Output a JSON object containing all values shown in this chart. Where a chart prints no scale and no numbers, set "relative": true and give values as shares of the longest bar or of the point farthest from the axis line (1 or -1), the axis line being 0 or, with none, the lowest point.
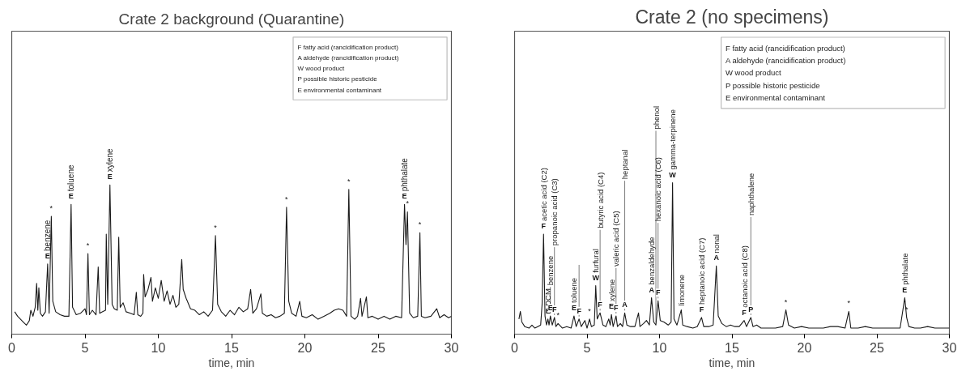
{
  "chart_data": [
    {
      "type": "line",
      "title": "Crate 2 background (Quarantine)",
      "xlabel": "time, min",
      "relative": true,
      "grid": false,
      "xlim": [
        0,
        30
      ],
      "xticks": [
        0,
        5,
        10,
        15,
        20,
        25,
        30
      ],
      "series": [
        {
          "color": "#1a1a1a",
          "x": [
            0.2,
            0.4,
            0.6,
            0.8,
            1.0,
            1.2,
            1.3,
            1.45,
            1.6,
            1.7,
            1.78,
            1.85,
            1.95,
            2.1,
            2.3,
            2.45,
            2.55,
            2.7,
            2.8,
            3.0,
            3.3,
            3.6,
            3.9,
            4.05,
            4.15,
            4.4,
            4.7,
            5.0,
            5.1,
            5.2,
            5.3,
            5.5,
            5.75,
            5.9,
            6.0,
            6.2,
            6.4,
            6.45,
            6.55,
            6.7,
            6.85,
            7.0,
            7.2,
            7.3,
            7.4,
            7.6,
            7.8,
            8.1,
            8.35,
            8.5,
            8.6,
            8.8,
            8.95,
            9.0,
            9.1,
            9.3,
            9.5,
            9.6,
            9.8,
            10.0,
            10.2,
            10.4,
            10.6,
            10.8,
            11.0,
            11.2,
            11.4,
            11.6,
            11.7,
            11.9,
            12.2,
            12.5,
            12.8,
            13.1,
            13.4,
            13.7,
            13.9,
            14.05,
            14.3,
            14.6,
            14.9,
            15.2,
            15.5,
            15.8,
            16.1,
            16.3,
            16.45,
            16.7,
            17.0,
            17.1,
            17.4,
            17.7,
            18.0,
            18.3,
            18.6,
            18.75,
            18.9,
            19.1,
            19.4,
            19.65,
            19.8,
            20.1,
            20.5,
            20.9,
            21.3,
            21.7,
            22.0,
            22.3,
            22.6,
            22.85,
            23.0,
            23.15,
            23.4,
            23.6,
            23.8,
            23.9,
            24.2,
            24.3,
            24.6,
            25.0,
            25.4,
            25.8,
            26.2,
            26.6,
            26.8,
            26.9,
            27.0,
            27.15,
            27.4,
            27.7,
            27.85,
            27.95,
            28.2,
            28.6,
            29.0,
            29.2,
            29.5,
            29.8,
            30.0
          ],
          "values": [
            0.15,
            0.12,
            0.1,
            0.08,
            0.06,
            0.09,
            0.16,
            0.12,
            0.18,
            0.34,
            0.16,
            0.31,
            0.14,
            0.12,
            0.15,
            0.47,
            0.14,
            0.79,
            0.22,
            0.15,
            0.13,
            0.12,
            0.12,
            0.87,
            0.18,
            0.13,
            0.14,
            0.17,
            0.13,
            0.54,
            0.13,
            0.16,
            0.13,
            0.45,
            0.14,
            0.15,
            0.16,
            0.67,
            0.2,
            1.0,
            0.2,
            0.17,
            0.16,
            0.65,
            0.18,
            0.21,
            0.15,
            0.14,
            0.13,
            0.28,
            0.13,
            0.12,
            0.14,
            0.4,
            0.25,
            0.3,
            0.38,
            0.22,
            0.31,
            0.24,
            0.36,
            0.22,
            0.29,
            0.2,
            0.26,
            0.18,
            0.2,
            0.5,
            0.3,
            0.24,
            0.17,
            0.16,
            0.13,
            0.15,
            0.12,
            0.16,
            0.66,
            0.2,
            0.15,
            0.12,
            0.16,
            0.13,
            0.18,
            0.15,
            0.17,
            0.3,
            0.14,
            0.17,
            0.27,
            0.14,
            0.12,
            0.13,
            0.11,
            0.12,
            0.14,
            0.85,
            0.22,
            0.14,
            0.12,
            0.22,
            0.12,
            0.11,
            0.13,
            0.1,
            0.12,
            0.14,
            0.16,
            0.17,
            0.16,
            0.12,
            0.97,
            0.12,
            0.1,
            0.12,
            0.24,
            0.12,
            0.25,
            0.11,
            0.12,
            0.1,
            0.12,
            0.1,
            0.12,
            0.11,
            0.87,
            0.6,
            0.82,
            0.14,
            0.11,
            0.12,
            0.68,
            0.12,
            0.11,
            0.12,
            0.17,
            0.11,
            0.13,
            0.11,
            0.12
          ]
        }
      ],
      "annotations": [
        "F fatty acid (rancidification product)",
        "A aldehyde (rancidification product)",
        "W wood product",
        "P possible historic pesticide",
        "E environmental contaminant",
        {
          "text": "E",
          "x": 2.45,
          "y": 0.47
        },
        {
          "text": "benzene",
          "x": 2.45,
          "y": 0.47
        },
        {
          "text": "*",
          "x": 2.7,
          "y": 0.79
        },
        {
          "text": "E",
          "x": 4.05,
          "y": 0.87
        },
        {
          "text": "toluene",
          "x": 4.05,
          "y": 0.87
        },
        {
          "text": "*",
          "x": 5.2,
          "y": 0.54
        },
        {
          "text": "E",
          "x": 6.7,
          "y": 1.0
        },
        {
          "text": "xylene",
          "x": 6.7,
          "y": 1.0
        },
        {
          "text": "*",
          "x": 13.9,
          "y": 0.66
        },
        {
          "text": "*",
          "x": 18.75,
          "y": 0.85
        },
        {
          "text": "*",
          "x": 23.0,
          "y": 0.97
        },
        {
          "text": "E",
          "x": 26.8,
          "y": 0.87
        },
        {
          "text": "phthalate",
          "x": 26.8,
          "y": 0.87
        },
        {
          "text": "*",
          "x": 27.0,
          "y": 0.82
        },
        {
          "text": "*",
          "x": 27.85,
          "y": 0.68
        }
      ]
    },
    {
      "type": "line",
      "title": "Crate 2 (no specimens)",
      "xlabel": "time, min",
      "relative": true,
      "grid": false,
      "xlim": [
        0,
        30
      ],
      "xticks": [
        0,
        5,
        10,
        15,
        20,
        25,
        30
      ],
      "series": [
        {
          "color": "#1a1a1a",
          "x": [
            0.3,
            0.4,
            0.5,
            0.7,
            1.0,
            1.2,
            1.4,
            1.6,
            1.8,
            1.9,
            2.0,
            2.1,
            2.2,
            2.3,
            2.38,
            2.47,
            2.6,
            2.75,
            2.85,
            3.0,
            3.3,
            3.6,
            3.9,
            4.1,
            4.25,
            4.45,
            4.6,
            4.85,
            5.0,
            5.17,
            5.3,
            5.5,
            5.6,
            5.7,
            5.9,
            6.1,
            6.3,
            6.5,
            6.6,
            6.68,
            6.8,
            7.0,
            7.1,
            7.3,
            7.45,
            7.6,
            7.75,
            8.0,
            8.3,
            8.55,
            8.65,
            8.9,
            9.1,
            9.3,
            9.45,
            9.6,
            9.75,
            9.9,
            10.05,
            10.3,
            10.6,
            10.8,
            10.9,
            11.0,
            11.2,
            11.5,
            11.6,
            11.9,
            12.3,
            12.6,
            12.9,
            13.05,
            13.4,
            13.7,
            13.92,
            14.05,
            14.3,
            14.6,
            14.9,
            15.2,
            15.5,
            15.84,
            16.0,
            16.3,
            16.45,
            16.7,
            17.0,
            17.5,
            18.0,
            18.5,
            18.72,
            18.9,
            19.3,
            19.8,
            20.3,
            20.8,
            21.3,
            21.8,
            22.3,
            22.8,
            23.06,
            23.2,
            23.7,
            24.2,
            24.7,
            25.2,
            25.7,
            26.2,
            26.6,
            26.92,
            27.05,
            27.2,
            27.6,
            28.0,
            28.5,
            29.0,
            29.5,
            30.0
          ],
          "values": [
            0.1,
            0.15,
            0.08,
            0.05,
            0.04,
            0.06,
            0.04,
            0.05,
            0.06,
            0.2,
            0.66,
            0.12,
            0.06,
            0.1,
            0.06,
            0.12,
            0.06,
            0.11,
            0.05,
            0.07,
            0.04,
            0.05,
            0.04,
            0.12,
            0.05,
            0.1,
            0.05,
            0.09,
            0.04,
            0.1,
            0.05,
            0.06,
            0.32,
            0.1,
            0.14,
            0.06,
            0.05,
            0.1,
            0.06,
            0.13,
            0.05,
            0.12,
            0.05,
            0.07,
            0.05,
            0.14,
            0.06,
            0.05,
            0.05,
            0.14,
            0.05,
            0.07,
            0.09,
            0.06,
            0.24,
            0.08,
            0.06,
            0.22,
            0.09,
            0.08,
            0.06,
            0.08,
            1.0,
            0.1,
            0.06,
            0.16,
            0.06,
            0.05,
            0.04,
            0.05,
            0.11,
            0.05,
            0.05,
            0.06,
            0.45,
            0.12,
            0.07,
            0.05,
            0.06,
            0.05,
            0.05,
            0.09,
            0.05,
            0.11,
            0.05,
            0.06,
            0.04,
            0.04,
            0.04,
            0.05,
            0.16,
            0.06,
            0.04,
            0.05,
            0.04,
            0.04,
            0.04,
            0.05,
            0.05,
            0.04,
            0.15,
            0.04,
            0.04,
            0.05,
            0.04,
            0.04,
            0.04,
            0.04,
            0.04,
            0.24,
            0.11,
            0.05,
            0.04,
            0.04,
            0.05,
            0.04,
            0.04,
            0.04
          ]
        }
      ],
      "annotations": [
        "F fatty acid (rancidification product)",
        "A aldehyde (rancidification product)",
        "W wood product",
        "P possible historic pesticide",
        "E environmental contaminant",
        {
          "text": "F",
          "x": 2.0,
          "y": 0.66
        },
        {
          "text": "acetic acid (C2)",
          "x": 2.0,
          "y": 0.66
        },
        {
          "text": "E",
          "x": 2.3,
          "y": 0.1
        },
        {
          "text": "DCM",
          "x": 2.3,
          "y": 0.1
        },
        {
          "text": "E",
          "x": 2.47,
          "y": 0.12
        },
        {
          "text": "benzene",
          "x": 2.47,
          "y": 0.12
        },
        {
          "text": "F",
          "x": 2.75,
          "y": 0.11
        },
        {
          "text": "propanoic acid (C3)",
          "x": 2.75,
          "y": 0.11
        },
        {
          "text": "*",
          "x": 3.0,
          "y": 0.07
        },
        {
          "text": "E",
          "x": 4.1,
          "y": 0.12
        },
        {
          "text": "toluene",
          "x": 4.1,
          "y": 0.12
        },
        {
          "text": "F",
          "x": 4.45,
          "y": 0.1
        },
        {
          "text": "*",
          "x": 5.17,
          "y": 0.1
        },
        {
          "text": "W",
          "x": 5.6,
          "y": 0.32
        },
        {
          "text": "furfural",
          "x": 5.6,
          "y": 0.32
        },
        {
          "text": "F",
          "x": 5.9,
          "y": 0.14
        },
        {
          "text": "butyric acid (C4)",
          "x": 5.9,
          "y": 0.14
        },
        {
          "text": "E",
          "x": 6.68,
          "y": 0.13
        },
        {
          "text": "xylene",
          "x": 6.68,
          "y": 0.13
        },
        {
          "text": "F",
          "x": 7.0,
          "y": 0.12
        },
        {
          "text": "valeric acid (C5)",
          "x": 7.0,
          "y": 0.12
        },
        {
          "text": "A",
          "x": 7.6,
          "y": 0.14
        },
        {
          "text": "heptanal",
          "x": 7.6,
          "y": 0.14
        },
        {
          "text": "A",
          "x": 9.45,
          "y": 0.24
        },
        {
          "text": "benzaldehyde",
          "x": 9.45,
          "y": 0.24
        },
        {
          "text": "F",
          "x": 9.9,
          "y": 0.22
        },
        {
          "text": "hexanoic acid (C6)",
          "x": 9.9,
          "y": 0.22
        },
        {
          "text": "phenol",
          "x": 9.75,
          "y": 0.06
        },
        {
          "text": "W",
          "x": 10.9,
          "y": 1.0
        },
        {
          "text": "gamma-terpinene",
          "x": 10.9,
          "y": 1.0
        },
        {
          "text": "limonene",
          "x": 11.5,
          "y": 0.16
        },
        {
          "text": "F",
          "x": 12.9,
          "y": 0.11
        },
        {
          "text": "heptanoic acid (C7)",
          "x": 12.9,
          "y": 0.11
        },
        {
          "text": "A",
          "x": 13.92,
          "y": 0.45
        },
        {
          "text": "nonal",
          "x": 13.92,
          "y": 0.45
        },
        {
          "text": "F",
          "x": 15.84,
          "y": 0.09
        },
        {
          "text": "octanoic acid (C8)",
          "x": 15.84,
          "y": 0.09
        },
        {
          "text": "P",
          "x": 16.3,
          "y": 0.11
        },
        {
          "text": "naphthalene",
          "x": 16.3,
          "y": 0.11
        },
        {
          "text": "*",
          "x": 18.72,
          "y": 0.16
        },
        {
          "text": "*",
          "x": 23.06,
          "y": 0.15
        },
        {
          "text": "E",
          "x": 26.92,
          "y": 0.24
        },
        {
          "text": "phthalate",
          "x": 26.92,
          "y": 0.24
        },
        {
          "text": "*",
          "x": 27.05,
          "y": 0.11
        }
      ]
    }
  ]
}
